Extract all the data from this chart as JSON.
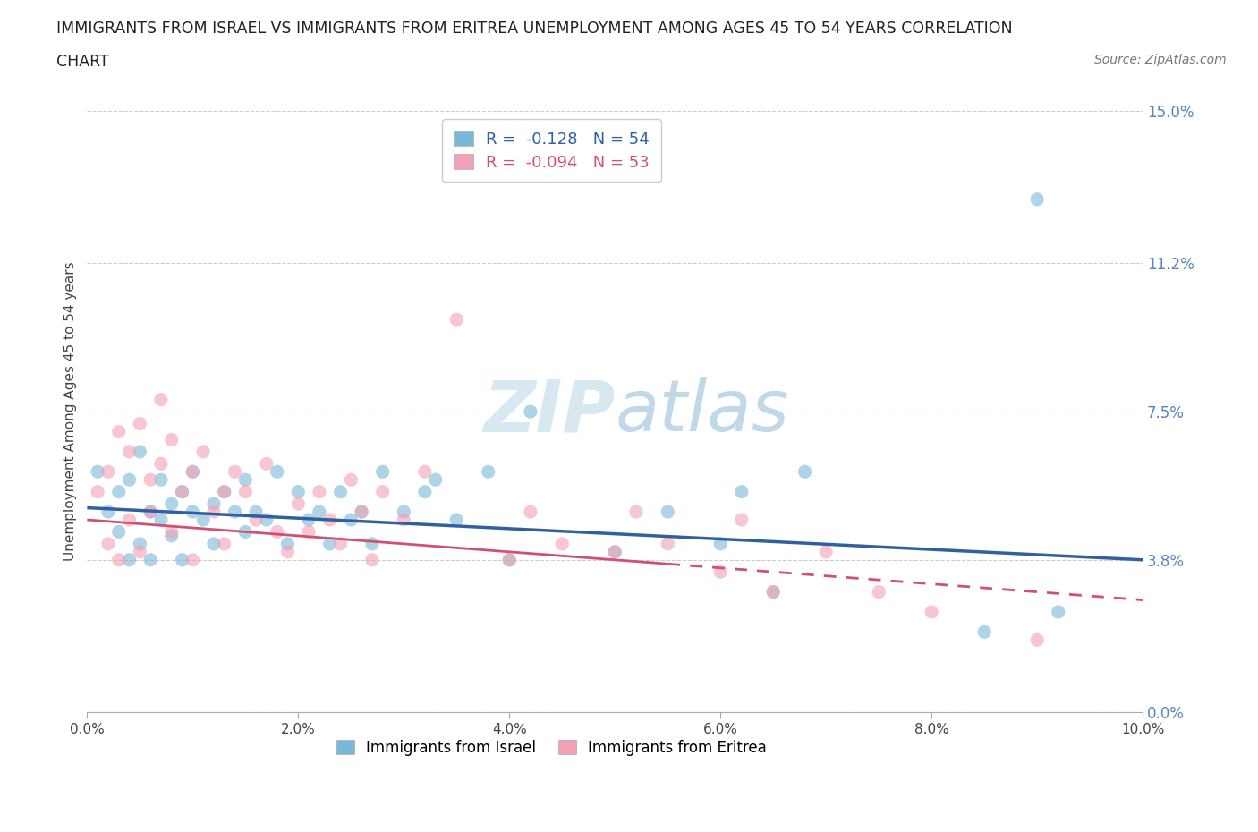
{
  "title_line1": "IMMIGRANTS FROM ISRAEL VS IMMIGRANTS FROM ERITREA UNEMPLOYMENT AMONG AGES 45 TO 54 YEARS CORRELATION",
  "title_line2": "CHART",
  "source_text": "Source: ZipAtlas.com",
  "ylabel": "Unemployment Among Ages 45 to 54 years",
  "legend_israel": "Immigrants from Israel",
  "legend_eritrea": "Immigrants from Eritrea",
  "r_israel": -0.128,
  "n_israel": 54,
  "r_eritrea": -0.094,
  "n_eritrea": 53,
  "xlim": [
    0.0,
    0.1
  ],
  "ylim": [
    0.0,
    0.15
  ],
  "yticks": [
    0.0,
    0.038,
    0.075,
    0.112,
    0.15
  ],
  "ytick_labels": [
    "0.0%",
    "3.8%",
    "7.5%",
    "11.2%",
    "15.0%"
  ],
  "xticks": [
    0.0,
    0.02,
    0.04,
    0.06,
    0.08,
    0.1
  ],
  "xtick_labels": [
    "0.0%",
    "2.0%",
    "4.0%",
    "6.0%",
    "8.0%",
    "10.0%"
  ],
  "color_israel": "#7ab8d9",
  "color_eritrea": "#f4a0b5",
  "trend_color_israel": "#3060a0",
  "trend_color_eritrea": "#d05070",
  "watermark_color": "#d8e8f0",
  "israel_x": [
    0.001,
    0.002,
    0.003,
    0.003,
    0.004,
    0.004,
    0.005,
    0.005,
    0.006,
    0.006,
    0.007,
    0.007,
    0.008,
    0.008,
    0.009,
    0.009,
    0.01,
    0.01,
    0.011,
    0.012,
    0.012,
    0.013,
    0.014,
    0.015,
    0.015,
    0.016,
    0.017,
    0.018,
    0.019,
    0.02,
    0.021,
    0.022,
    0.023,
    0.024,
    0.025,
    0.026,
    0.027,
    0.028,
    0.03,
    0.032,
    0.033,
    0.035,
    0.038,
    0.04,
    0.042,
    0.05,
    0.055,
    0.06,
    0.062,
    0.065,
    0.068,
    0.085,
    0.09,
    0.092
  ],
  "israel_y": [
    0.06,
    0.05,
    0.055,
    0.045,
    0.058,
    0.038,
    0.065,
    0.042,
    0.05,
    0.038,
    0.048,
    0.058,
    0.052,
    0.044,
    0.055,
    0.038,
    0.05,
    0.06,
    0.048,
    0.052,
    0.042,
    0.055,
    0.05,
    0.058,
    0.045,
    0.05,
    0.048,
    0.06,
    0.042,
    0.055,
    0.048,
    0.05,
    0.042,
    0.055,
    0.048,
    0.05,
    0.042,
    0.06,
    0.05,
    0.055,
    0.058,
    0.048,
    0.06,
    0.038,
    0.075,
    0.04,
    0.05,
    0.042,
    0.055,
    0.03,
    0.06,
    0.02,
    0.128,
    0.025
  ],
  "eritrea_x": [
    0.001,
    0.002,
    0.002,
    0.003,
    0.003,
    0.004,
    0.004,
    0.005,
    0.005,
    0.006,
    0.006,
    0.007,
    0.007,
    0.008,
    0.008,
    0.009,
    0.01,
    0.01,
    0.011,
    0.012,
    0.013,
    0.013,
    0.014,
    0.015,
    0.016,
    0.017,
    0.018,
    0.019,
    0.02,
    0.021,
    0.022,
    0.023,
    0.024,
    0.025,
    0.026,
    0.027,
    0.028,
    0.03,
    0.032,
    0.035,
    0.04,
    0.042,
    0.045,
    0.05,
    0.052,
    0.055,
    0.06,
    0.062,
    0.065,
    0.07,
    0.075,
    0.08,
    0.09
  ],
  "eritrea_y": [
    0.055,
    0.06,
    0.042,
    0.07,
    0.038,
    0.065,
    0.048,
    0.072,
    0.04,
    0.058,
    0.05,
    0.078,
    0.062,
    0.068,
    0.045,
    0.055,
    0.06,
    0.038,
    0.065,
    0.05,
    0.055,
    0.042,
    0.06,
    0.055,
    0.048,
    0.062,
    0.045,
    0.04,
    0.052,
    0.045,
    0.055,
    0.048,
    0.042,
    0.058,
    0.05,
    0.038,
    0.055,
    0.048,
    0.06,
    0.098,
    0.038,
    0.05,
    0.042,
    0.04,
    0.05,
    0.042,
    0.035,
    0.048,
    0.03,
    0.04,
    0.03,
    0.025,
    0.018
  ],
  "trend_israel_y0": 0.051,
  "trend_israel_y1": 0.038,
  "trend_eritrea_y0": 0.048,
  "trend_eritrea_y1": 0.028
}
